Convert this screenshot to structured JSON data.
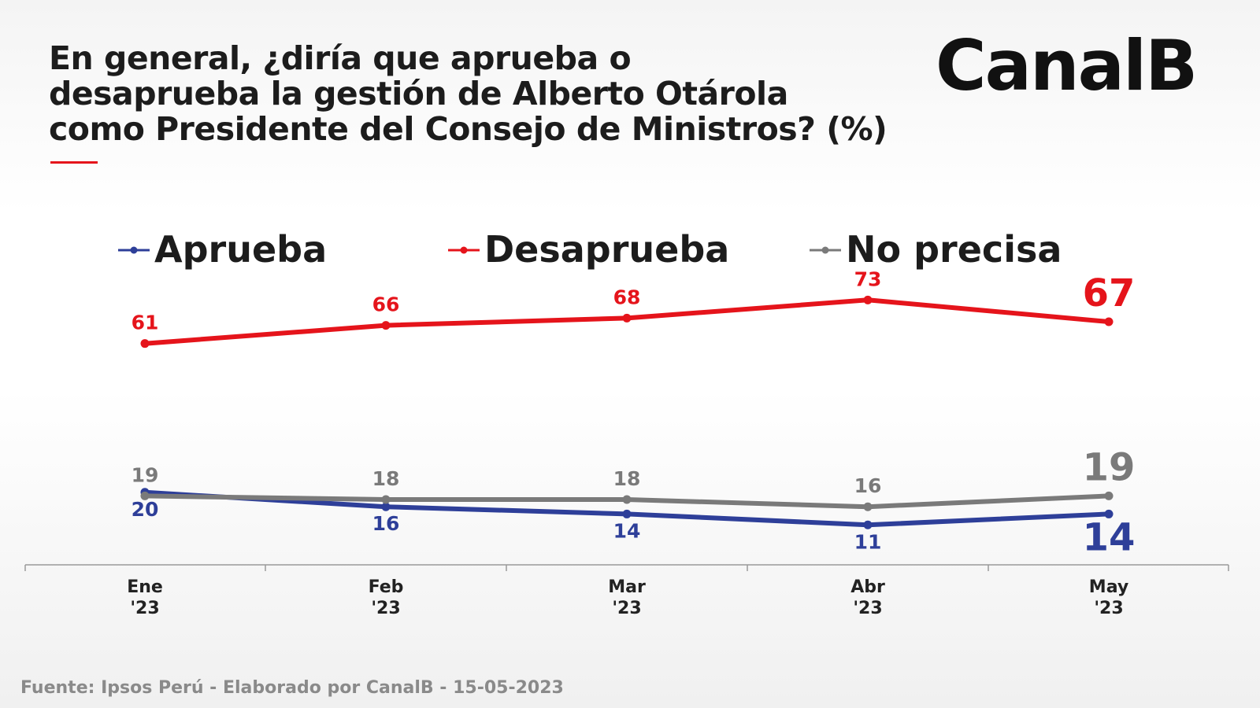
{
  "title_lines": [
    "En general, ¿diría que aprueba o",
    "desaprueba la gestión de Alberto Otárola",
    "como Presidente del Consejo de Ministros? (%)"
  ],
  "brand": "CanalB",
  "source": "Fuente: Ipsos Perú - Elaborado por CanalB - 15-05-2023",
  "colors": {
    "aprueba": "#2e3f99",
    "desaprueba": "#e5141b",
    "no_precisa": "#7a7a7a",
    "accent": "#e5141b"
  },
  "chart_data": {
    "type": "line",
    "categories": [
      [
        "Ene",
        "'23"
      ],
      [
        "Feb",
        "'23"
      ],
      [
        "Mar",
        "'23"
      ],
      [
        "Abr",
        "'23"
      ],
      [
        "May",
        "'23"
      ]
    ],
    "series": [
      {
        "name": "Aprueba",
        "values": [
          20,
          16,
          14,
          11,
          14
        ],
        "color": "#2e3f99"
      },
      {
        "name": "Desaprueba",
        "values": [
          61,
          66,
          68,
          73,
          67
        ],
        "color": "#e5141b"
      },
      {
        "name": "No precisa",
        "values": [
          19,
          18,
          18,
          16,
          19
        ],
        "color": "#7a7a7a"
      }
    ],
    "ylim": [
      0,
      85
    ],
    "legend_position": "top",
    "grid": false,
    "last_value_emphasized": true
  }
}
